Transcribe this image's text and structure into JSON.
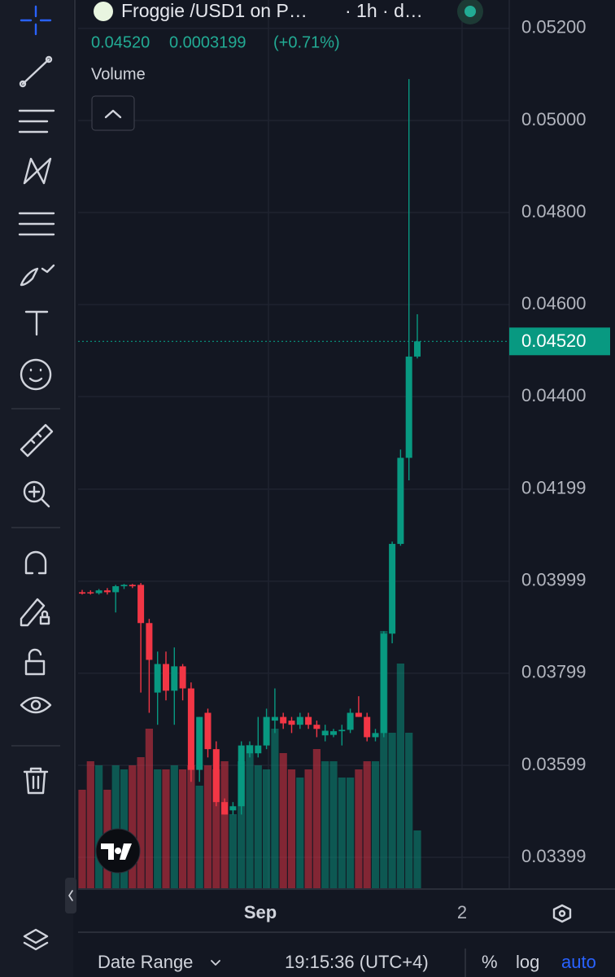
{
  "header": {
    "title": "Froggie /USD1 on P…",
    "interval": "· 1h · d…",
    "last": "0.04520",
    "change": "0.0003199",
    "change_pct": "(+0.71%)",
    "volume_label": "Volume"
  },
  "chart_data": {
    "type": "candlestick",
    "up_color": "#089981",
    "down_color": "#f23645",
    "open": [
      0.03975,
      0.03975,
      0.03973,
      0.03979,
      0.03975,
      0.03988,
      0.03991,
      0.03991,
      0.03908,
      0.03757,
      0.03819,
      0.03761,
      0.03814,
      0.03766,
      0.03589,
      0.03713,
      0.03634,
      0.03519,
      0.03501,
      0.0351,
      0.03625,
      0.03625,
      0.03642,
      0.03696,
      0.03704,
      0.03696,
      0.03687,
      0.03704,
      0.03687,
      0.03664,
      0.03665,
      0.03673,
      0.03676,
      0.03713,
      0.03704,
      0.0366,
      0.03669,
      0.03885,
      0.0408,
      0.04267,
      0.04487
    ],
    "high": [
      0.0398,
      0.03979,
      0.03982,
      0.03984,
      0.03991,
      0.03993,
      0.03993,
      0.03995,
      0.03917,
      0.03846,
      0.03846,
      0.03855,
      0.03819,
      0.03779,
      0.03704,
      0.03722,
      0.03651,
      0.03527,
      0.03519,
      0.03651,
      0.03651,
      0.03704,
      0.03722,
      0.03766,
      0.03713,
      0.03704,
      0.03713,
      0.03713,
      0.03696,
      0.03687,
      0.03678,
      0.03687,
      0.03722,
      0.03749,
      0.03713,
      0.03678,
      0.0389,
      0.04085,
      0.04285,
      0.0509,
      0.04579
    ],
    "low": [
      0.0397,
      0.0397,
      0.0397,
      0.0397,
      0.03931,
      0.03982,
      0.03984,
      0.03757,
      0.03713,
      0.03687,
      0.0374,
      0.03687,
      0.0374,
      0.03563,
      0.03563,
      0.03616,
      0.0351,
      0.03492,
      0.03492,
      0.03492,
      0.03616,
      0.03616,
      0.03634,
      0.03669,
      0.03678,
      0.03669,
      0.03678,
      0.03678,
      0.0366,
      0.03651,
      0.0366,
      0.03642,
      0.03669,
      0.03704,
      0.03651,
      0.03651,
      0.0366,
      0.03864,
      0.04076,
      0.04218,
      0.04483
    ],
    "close": [
      0.03972,
      0.03973,
      0.03979,
      0.03975,
      0.03988,
      0.03991,
      0.03988,
      0.03908,
      0.03828,
      0.03819,
      0.03761,
      0.03814,
      0.03766,
      0.03589,
      0.03704,
      0.03634,
      0.03519,
      0.03492,
      0.0351,
      0.03642,
      0.03642,
      0.03642,
      0.03704,
      0.03704,
      0.0369,
      0.03687,
      0.03704,
      0.03687,
      0.03678,
      0.03674,
      0.03673,
      0.03676,
      0.03713,
      0.03704,
      0.0366,
      0.03669,
      0.03885,
      0.0408,
      0.04267,
      0.04487,
      0.0452
    ],
    "volume": [
      122,
      157,
      152,
      122,
      152,
      147,
      152,
      162,
      197,
      147,
      147,
      152,
      147,
      152,
      127,
      152,
      147,
      157,
      92,
      157,
      177,
      152,
      147,
      197,
      167,
      147,
      137,
      147,
      172,
      157,
      157,
      137,
      137,
      147,
      157,
      157,
      317,
      192,
      277,
      192,
      72
    ],
    "ylim": [
      0.0333,
      0.0526
    ],
    "yticks": [
      {
        "value": 0.052,
        "label": "0.05200"
      },
      {
        "value": 0.05,
        "label": "0.05000"
      },
      {
        "value": 0.048,
        "label": "0.04800"
      },
      {
        "value": 0.046,
        "label": "0.04600"
      },
      {
        "value": 0.044,
        "label": "0.04400"
      },
      {
        "value": 0.04199,
        "label": "0.04199"
      },
      {
        "value": 0.03999,
        "label": "0.03999"
      },
      {
        "value": 0.03799,
        "label": "0.03799"
      },
      {
        "value": 0.03599,
        "label": "0.03599"
      },
      {
        "value": 0.03399,
        "label": "0.03399"
      }
    ],
    "x_labels": [
      "Sep",
      "2"
    ],
    "last_price": {
      "value": 0.0452,
      "label": "0.04520"
    },
    "grid": true
  },
  "footer": {
    "range": "Date Range",
    "time": "19:15:36 (UTC+4)",
    "percent": "%",
    "log": "log",
    "auto": "auto"
  }
}
